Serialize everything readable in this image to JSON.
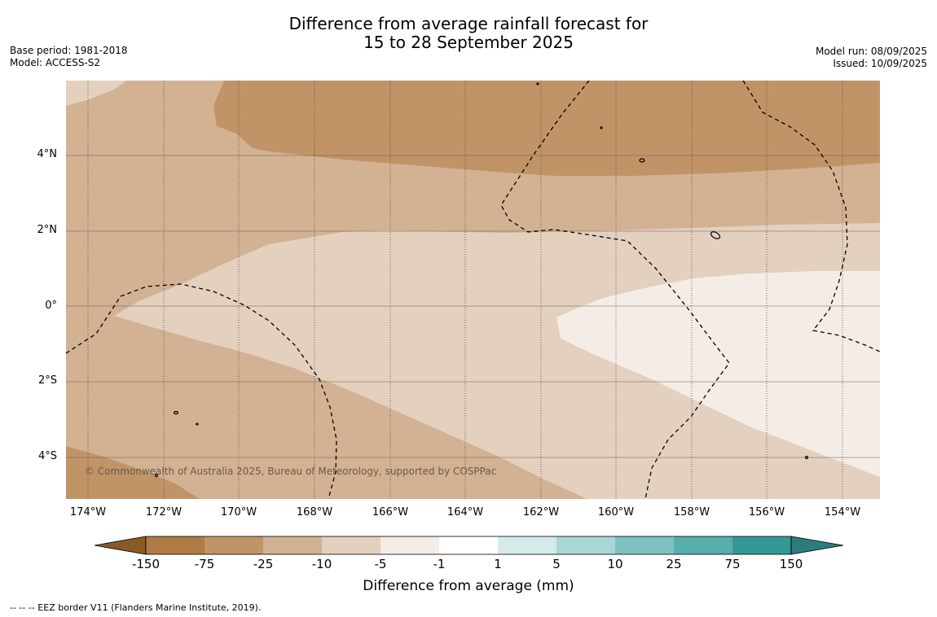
{
  "title_line1": "Difference from average rainfall forecast for",
  "title_line2": "15 to 28 September 2025",
  "meta_left": {
    "base_period": "Base period: 1981-2018",
    "model": "Model: ACCESS-S2"
  },
  "meta_right": {
    "model_run": "Model run: 08/09/2025",
    "issued": "Issued: 10/09/2025"
  },
  "lat_labels": [
    "4°N",
    "2°N",
    "0°",
    "2°S",
    "4°S"
  ],
  "lon_labels": [
    "174°W",
    "172°W",
    "170°W",
    "168°W",
    "166°W",
    "164°W",
    "162°W",
    "160°W",
    "158°W",
    "156°W",
    "154°W"
  ],
  "copyright": "© Commonwealth of Australia 2025, Bureau of Meteorology, supported by COSPPac",
  "colorbar": {
    "title": "Difference from average (mm)",
    "ticks": [
      "-150",
      "-75",
      "-25",
      "-10",
      "-5",
      "-1",
      "1",
      "5",
      "10",
      "25",
      "75",
      "150"
    ],
    "colors": [
      "#8a5a26",
      "#b07a45",
      "#c19468",
      "#d2b293",
      "#e3d0bf",
      "#f4ece6",
      "#ffffff",
      "#d4ebe9",
      "#a9d7d6",
      "#80c2c1",
      "#58aeac",
      "#339895",
      "#2a7d7a"
    ]
  },
  "legend_footnote": "--  --  -- EEZ border V11 (Flanders Marine Institute, 2019)."
}
